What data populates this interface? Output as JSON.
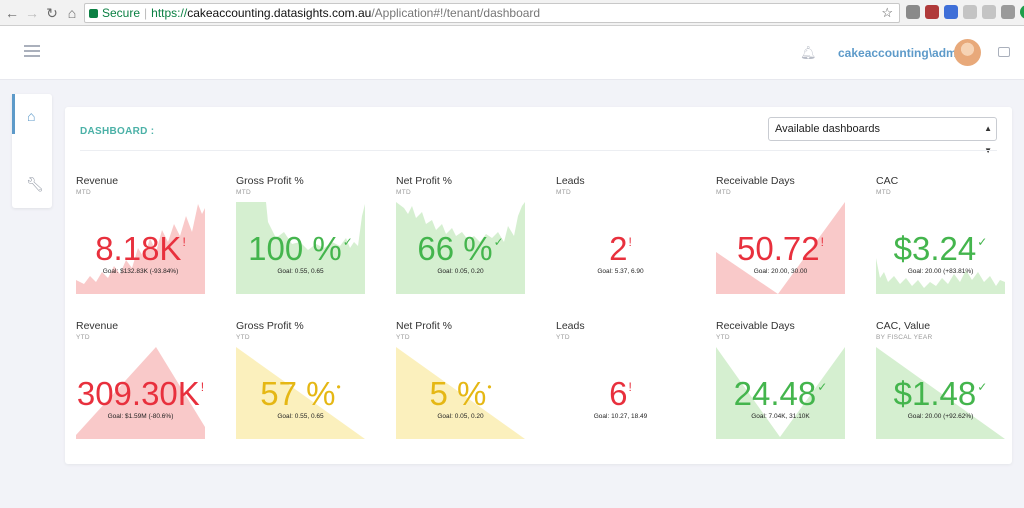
{
  "browser": {
    "secure_label": "Secure",
    "url_scheme": "https://",
    "url_host": "cakeaccounting.datasights.com.au",
    "url_path": "/Application#!/tenant/dashboard"
  },
  "header": {
    "username": "cakeaccounting\\admin"
  },
  "dashboard": {
    "title": "DASHBOARD",
    "title_suffix": ":",
    "select_value": "Available dashboards"
  },
  "colors": {
    "red": "#e8303d",
    "green": "#44b54d",
    "yellow": "#e5b714",
    "red_fill": "#f9c9c9",
    "green_fill": "#d5efd0",
    "yellow_fill": "#fbf0bd"
  },
  "tiles": [
    {
      "title": "Revenue",
      "sub": "MTD",
      "value": "8.18K",
      "suffix": "!",
      "goal": "Goal: $132.83K (-93.84%)",
      "status": "red",
      "chart": "sparkline-up"
    },
    {
      "title": "Gross Profit %",
      "sub": "MTD",
      "value": "100 %",
      "suffix": "✓",
      "goal": "Goal: 0.55, 0.65",
      "status": "green",
      "chart": "sparkline-drop"
    },
    {
      "title": "Net Profit %",
      "sub": "MTD",
      "value": "66 %",
      "suffix": "✓",
      "goal": "Goal: 0.05, 0.20",
      "status": "green",
      "chart": "sparkline-noisy"
    },
    {
      "title": "Leads",
      "sub": "MTD",
      "value": "2",
      "suffix": "!",
      "goal": "Goal: 5.37, 6.90",
      "status": "red",
      "chart": "none"
    },
    {
      "title": "Receivable Days",
      "sub": "MTD",
      "value": "50.72",
      "suffix": "!",
      "goal": "Goal: 20.00, 30.00",
      "status": "red",
      "chart": "valley-rise"
    },
    {
      "title": "CAC",
      "sub": "MTD",
      "value": "$3.24",
      "suffix": "✓",
      "goal": "Goal: 20.00 (+83.81%)",
      "status": "green",
      "chart": "spike"
    },
    {
      "title": "Revenue",
      "sub": "YTD",
      "value": "309.30K",
      "suffix": "!",
      "goal": "Goal: $1.59M (-80.6%)",
      "status": "red",
      "chart": "ridge"
    },
    {
      "title": "Gross Profit %",
      "sub": "YTD",
      "value": "57 %",
      "suffix": "•",
      "goal": "Goal: 0.55, 0.65",
      "status": "yellow",
      "chart": "decline"
    },
    {
      "title": "Net Profit %",
      "sub": "YTD",
      "value": "5 %",
      "suffix": "•",
      "goal": "Goal: 0.05, 0.20",
      "status": "yellow",
      "chart": "decline-steep"
    },
    {
      "title": "Leads",
      "sub": "YTD",
      "value": "6",
      "suffix": "!",
      "goal": "Goal: 10.27, 18.49",
      "status": "red",
      "chart": "none"
    },
    {
      "title": "Receivable Days",
      "sub": "YTD",
      "value": "24.48",
      "suffix": "✓",
      "goal": "Goal: 7.04K, 31.10K",
      "status": "green",
      "chart": "v-shape"
    },
    {
      "title": "CAC, Value",
      "sub": "BY FISCAL YEAR",
      "value": "$1.48",
      "suffix": "✓",
      "goal": "Goal: 20.00 (+92.62%)",
      "status": "green",
      "chart": "decline-steep"
    }
  ]
}
